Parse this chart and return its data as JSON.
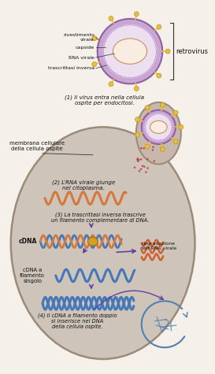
{
  "bg_color": "#f5f0ea",
  "cell_fill": "#d4c8bc",
  "cell_edge": "#9b8b78",
  "virus_outer": "#c8a8d0",
  "virus_mid": "#ddc0e8",
  "virus_inner_fill": "#ece0f0",
  "virus_core_fill": "#f8ede0",
  "virus_core_edge": "#c89060",
  "rna_orange": "#d4783c",
  "cdna_blue": "#4478b8",
  "spike_yellow": "#e8c040",
  "spike_edge": "#c09020",
  "arrow_purple": "#6040a0",
  "arrow_dark": "#4a3a7a",
  "degraded_orange": "#d06030",
  "chrom_blue": "#5080b0",
  "label_color": "#111111",
  "line_color": "#333333",
  "bracket_color": "#333333",
  "labels": {
    "rivestimento_virale": "rivestimento\nvirale",
    "capside": "capside",
    "rna_virale": "RNA virale",
    "trascrittasi": "trascrittasi inversa",
    "retrovirus": "retrovirus",
    "step1": "(1) Il virus entra nella cellula\nospite per endocitosi.",
    "membrana": "membrana cellulare\ndella cellula ospite",
    "step2": "(2) L’RNA virale giunge\nnel citoplasma.",
    "step3": "(3) La trascrittasi inversa trascrive\nun filamento complementare di DNA.",
    "cdna_label": "cDNA",
    "degradazione": "degradazione\ndell’RNA virale",
    "cdna_singolo": "cDNA a\nfilamento\nsingolo",
    "step4": "(4) Il cDNA a filamento doppio\nsi inserisce nel DNA\ndella cellula ospite."
  }
}
